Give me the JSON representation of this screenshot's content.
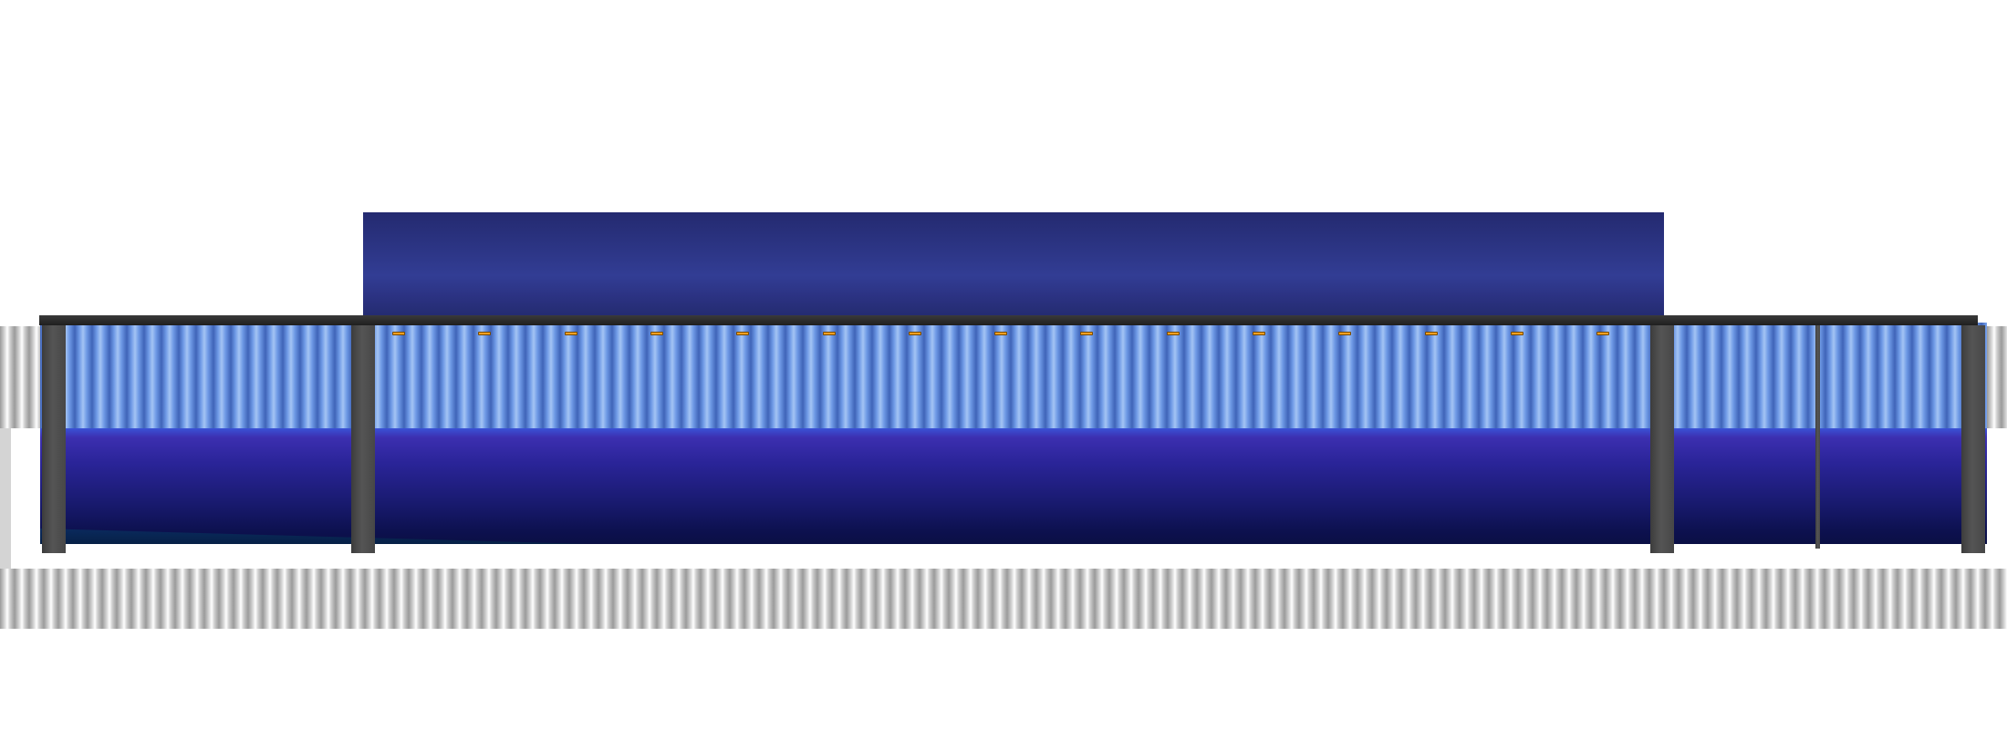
{
  "scene": {
    "description_visible_text": "",
    "colors": {
      "background": "#ffffff",
      "upper_block": "#2c3585",
      "roof_beam": "#262626",
      "corrugated_blue": "#6f9ae6",
      "base_band": "#1a1b72",
      "post": "#4a4a4a",
      "silver_wall": "#cfcfcf",
      "eave_light": "#f0a020"
    },
    "eave_light_count": 15,
    "post_count": 5
  }
}
